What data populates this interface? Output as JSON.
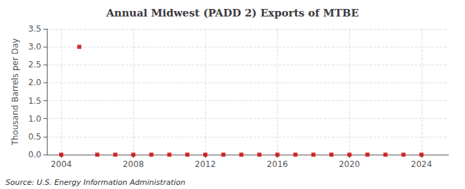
{
  "chart_data": {
    "type": "scatter",
    "title": "Annual Midwest (PADD 2) Exports of MTBE",
    "ylabel": "Thousand Barrels per Day",
    "annotations": [
      "Source: U.S. Energy Information Administration"
    ],
    "x": [
      2004,
      2005,
      2006,
      2007,
      2008,
      2009,
      2010,
      2011,
      2012,
      2013,
      2014,
      2015,
      2016,
      2017,
      2018,
      2019,
      2020,
      2021,
      2022,
      2023,
      2024
    ],
    "values": [
      0.0,
      3.0,
      0.0,
      0.0,
      0.0,
      0.0,
      0.0,
      0.0,
      0.0,
      0.0,
      0.0,
      0.0,
      0.0,
      0.0,
      0.0,
      0.0,
      0.0,
      0.0,
      0.0,
      0.0,
      0.0
    ],
    "color": "#cc0000",
    "marker": "square",
    "xlim": [
      2003.2,
      2025.5
    ],
    "xticks": [
      2004,
      2008,
      2012,
      2016,
      2020,
      2024
    ],
    "ylim": [
      0.0,
      3.5
    ],
    "yticks": [
      {
        "value": 0.0,
        "label": "0.0"
      },
      0.5,
      {
        "value": 1.0,
        "label": "1.0"
      },
      1.5,
      {
        "value": 2.0,
        "label": "2.0"
      },
      2.5,
      {
        "value": 3.0,
        "label": "3.0"
      },
      3.5
    ],
    "grid": true
  }
}
